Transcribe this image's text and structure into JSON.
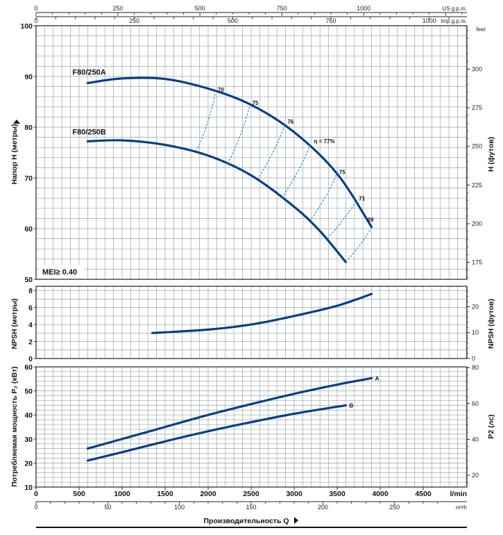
{
  "top_axis_1": {
    "unit": "US g.p.m.",
    "ticks": [
      "0",
      "250",
      "500",
      "750",
      "1000"
    ]
  },
  "top_axis_2": {
    "unit": "Imp g.p.m.",
    "ticks": [
      "0",
      "250",
      "500",
      "750",
      "1000"
    ]
  },
  "bottom_axis_1": {
    "unit": "l/min",
    "ticks": [
      "0",
      "500",
      "1000",
      "1500",
      "2000",
      "2500",
      "3000",
      "3500",
      "4000",
      "4500"
    ]
  },
  "bottom_axis_2": {
    "unit": "m³/h",
    "ticks": [
      "0",
      "50",
      "100",
      "150",
      "200",
      "250"
    ]
  },
  "x_title": "Производительность Q",
  "chart_data": [
    {
      "type": "line",
      "ylabel": "Напор H (метры)",
      "y2label": "H (футов)",
      "y2unit": "feet",
      "ylim": [
        50,
        100
      ],
      "yticks": [
        "50",
        "60",
        "70",
        "80",
        "90",
        "100"
      ],
      "y2ticks": [
        "175",
        "200",
        "225",
        "250",
        "275",
        "300"
      ],
      "annotation": "MEI≥ 0.40",
      "series": [
        {
          "name": "F80/250A",
          "x": [
            600,
            1000,
            1500,
            2000,
            2500,
            3000,
            3500,
            3900
          ],
          "y": [
            88.7,
            89.6,
            89.5,
            87.6,
            84.4,
            79.0,
            70.8,
            60.3
          ]
        },
        {
          "name": "F80/250B",
          "x": [
            600,
            1000,
            1500,
            2000,
            2500,
            3000,
            3300,
            3600
          ],
          "y": [
            77.2,
            77.4,
            76.5,
            74.4,
            70.5,
            64.3,
            59.5,
            53.4
          ]
        }
      ],
      "efficiency_labels": [
        "70",
        "75",
        "76",
        "η = 77%",
        "75",
        "71",
        "69"
      ],
      "efficiency_lines": [
        {
          "label": "70",
          "from": [
            2080,
            86.6
          ],
          "to": [
            1860,
            75.0
          ]
        },
        {
          "label": "75",
          "from": [
            2480,
            84.0
          ],
          "to": [
            2220,
            72.5
          ]
        },
        {
          "label": "76",
          "from": [
            2890,
            80.4
          ],
          "to": [
            2580,
            69.8
          ]
        },
        {
          "label": "η = 77%",
          "from": [
            3190,
            76.6
          ],
          "to": [
            2860,
            66.1
          ]
        },
        {
          "label": "75",
          "from": [
            3490,
            70.6
          ],
          "to": [
            3190,
            61.7
          ]
        },
        {
          "label": "71",
          "from": [
            3720,
            65.4
          ],
          "to": [
            3370,
            57.8
          ]
        },
        {
          "label": "69",
          "from": [
            3900,
            60.3
          ],
          "to": [
            3600,
            53.4
          ]
        }
      ]
    },
    {
      "type": "line",
      "ylabel": "NPSH (метры)",
      "y2label": "NPSH (футов)",
      "ylim": [
        0,
        8.5
      ],
      "yticks": [
        "0",
        "2",
        "4",
        "6",
        "8"
      ],
      "y2ticks": [
        "0",
        "10",
        "20"
      ],
      "series": [
        {
          "x": [
            1350,
            2000,
            2500,
            3000,
            3500,
            3900
          ],
          "y": [
            3.0,
            3.4,
            4.0,
            5.0,
            6.2,
            7.6
          ]
        }
      ]
    },
    {
      "type": "line",
      "ylabel": "Потребляемая мощность P₂ (кВт)",
      "y2label": "P2 (лс)",
      "ylim": [
        10,
        60
      ],
      "yticks": [
        "10",
        "20",
        "30",
        "40",
        "50",
        "60"
      ],
      "y2ticks": [
        "20",
        "40",
        "60",
        "80"
      ],
      "series": [
        {
          "name": "A",
          "x": [
            600,
            1000,
            1500,
            2000,
            2500,
            3000,
            3500,
            3900
          ],
          "y": [
            26.0,
            30.0,
            35.0,
            40.0,
            44.5,
            48.8,
            52.6,
            55.3
          ]
        },
        {
          "name": "B",
          "x": [
            600,
            1000,
            1500,
            2000,
            2500,
            3000,
            3600
          ],
          "y": [
            21.0,
            24.5,
            29.0,
            33.2,
            37.0,
            40.5,
            44.0
          ]
        }
      ]
    }
  ]
}
